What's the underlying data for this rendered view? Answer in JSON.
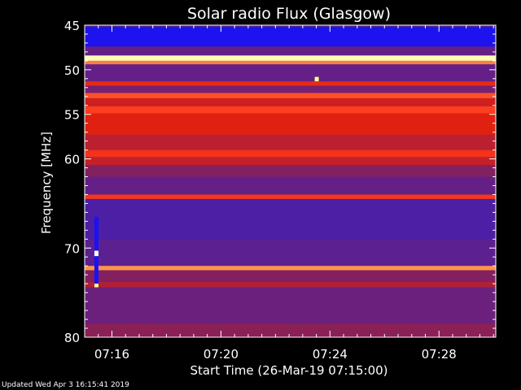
{
  "footer": {
    "updated": "Updated Wed Apr  3 16:15:41 2019"
  },
  "chart_data": {
    "type": "heatmap",
    "title": "Solar radio Flux (Glasgow)",
    "xlabel": "Start Time (26-Mar-19 07:15:00)",
    "ylabel": "Frequency [MHz]",
    "xlim": [
      "07:15:00",
      "07:30:05"
    ],
    "ylim": [
      45,
      80
    ],
    "y_reversed": true,
    "x_ticks": [
      "07:16",
      "07:20",
      "07:24",
      "07:28"
    ],
    "y_ticks": [
      45,
      50,
      55,
      60,
      70,
      80
    ],
    "colormap": [
      "#1010ff",
      "#5020a0",
      "#902050",
      "#e02010",
      "#ff4020",
      "#ffff80",
      "#ffffff"
    ],
    "background_level": 0.18,
    "bands": [
      {
        "freq_start": 45.2,
        "freq_end": 47.4,
        "level": 0.03
      },
      {
        "freq_start": 47.4,
        "freq_end": 48.4,
        "level": 0.22
      },
      {
        "freq_start": 48.4,
        "freq_end": 49.0,
        "level": 0.9
      },
      {
        "freq_start": 49.0,
        "freq_end": 49.4,
        "level": 0.72
      },
      {
        "freq_start": 49.4,
        "freq_end": 51.3,
        "level": 0.22
      },
      {
        "freq_start": 51.3,
        "freq_end": 51.8,
        "level": 0.55
      },
      {
        "freq_start": 51.8,
        "freq_end": 52.6,
        "level": 0.26
      },
      {
        "freq_start": 52.6,
        "freq_end": 53.2,
        "level": 0.68
      },
      {
        "freq_start": 53.2,
        "freq_end": 54.1,
        "level": 0.46
      },
      {
        "freq_start": 54.1,
        "freq_end": 54.9,
        "level": 0.66
      },
      {
        "freq_start": 54.9,
        "freq_end": 57.3,
        "level": 0.5
      },
      {
        "freq_start": 57.3,
        "freq_end": 59.0,
        "level": 0.42
      },
      {
        "freq_start": 59.0,
        "freq_end": 59.8,
        "level": 0.6
      },
      {
        "freq_start": 59.8,
        "freq_end": 60.7,
        "level": 0.44
      },
      {
        "freq_start": 60.7,
        "freq_end": 62.0,
        "level": 0.3
      },
      {
        "freq_start": 62.0,
        "freq_end": 64.0,
        "level": 0.22
      },
      {
        "freq_start": 64.0,
        "freq_end": 64.5,
        "level": 0.62
      },
      {
        "freq_start": 64.5,
        "freq_end": 69.0,
        "level": 0.16
      },
      {
        "freq_start": 69.0,
        "freq_end": 72.0,
        "level": 0.2
      },
      {
        "freq_start": 72.0,
        "freq_end": 72.5,
        "level": 0.74
      },
      {
        "freq_start": 72.5,
        "freq_end": 73.8,
        "level": 0.3
      },
      {
        "freq_start": 73.8,
        "freq_end": 74.4,
        "level": 0.4
      },
      {
        "freq_start": 74.4,
        "freq_end": 78.5,
        "level": 0.24
      },
      {
        "freq_start": 78.5,
        "freq_end": 80.0,
        "level": 0.32
      }
    ],
    "features": [
      {
        "time": "07:15:25",
        "freq_start": 66.5,
        "freq_end": 74.3,
        "level": 0.02
      },
      {
        "time": "07:15:25",
        "freq_start": 70.3,
        "freq_end": 70.9,
        "level": 1.0
      },
      {
        "time": "07:15:25",
        "freq_start": 74.0,
        "freq_end": 74.4,
        "level": 0.85
      },
      {
        "time": "07:23:30",
        "freq_start": 50.8,
        "freq_end": 51.3,
        "level": 0.85
      }
    ]
  }
}
